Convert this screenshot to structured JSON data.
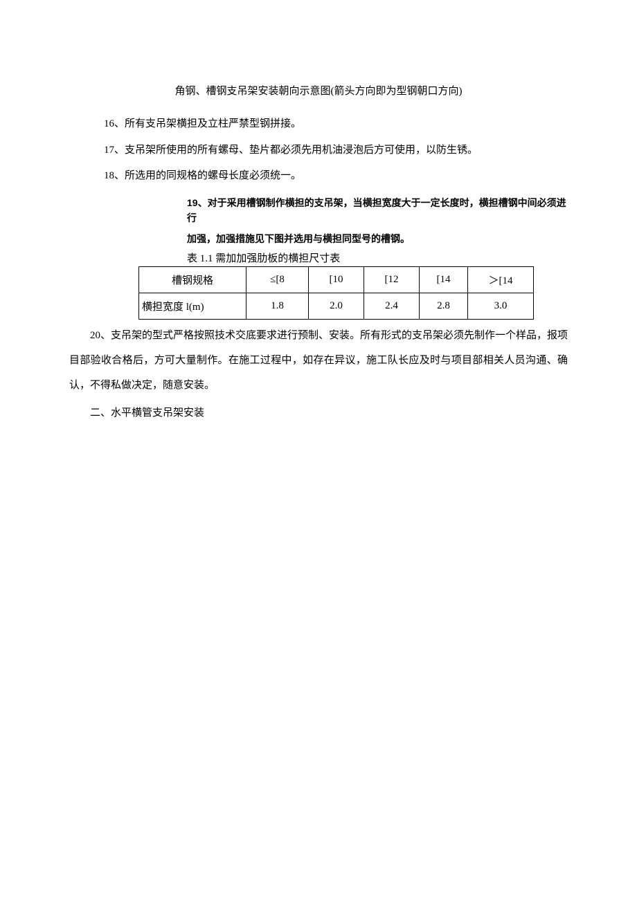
{
  "caption": "角钢、槽钢支吊架安装朝向示意图(箭头方向即为型钢朝口方向)",
  "items": {
    "i16": "16、所有支吊架横担及立柱严禁型钢拼接。",
    "i17": "17、支吊架所使用的所有螺母、垫片都必须先用机油浸泡后方可使用，以防生锈。",
    "i18": "18、所选用的同规格的螺母长度必须统一。",
    "i19a": "19、对于采用槽钢制作横担的支吊架，当横担宽度大于一定长度时，横担槽钢中间必须进行",
    "i19b": "加强，加强措施见下图并选用与横担同型号的槽钢。",
    "i20": "20、支吊架的型式严格按照技术交底要求进行预制、安装。所有形式的支吊架必须先制作一个样品，报项目部验收合格后，方可大量制作。在施工过程中，如存在异议，施工队长应及时与项目部相关人员沟通、确认，不得私做决定，随意安装。"
  },
  "table": {
    "caption": "表 1.1 需加加强肋板的横担尺寸表",
    "header": [
      "槽钢规格",
      "≤[8",
      "[10",
      "[12",
      "[14",
      "＞[14"
    ],
    "row1": [
      "横担宽度 l(m)",
      "1.8",
      "2.0",
      "2.4",
      "2.8",
      "3.0"
    ]
  },
  "section2": "二、水平横管支吊架安装",
  "style": {
    "page_bg": "#ffffff",
    "text_color": "#000000",
    "border_color": "#000000",
    "body_font": "SimSun",
    "heading_font": "SimHei",
    "base_fontsize": 15,
    "item19_fontsize": 14,
    "line_height": 2.5,
    "table_col_widths": [
      155,
      90,
      80,
      80,
      70,
      95
    ]
  }
}
